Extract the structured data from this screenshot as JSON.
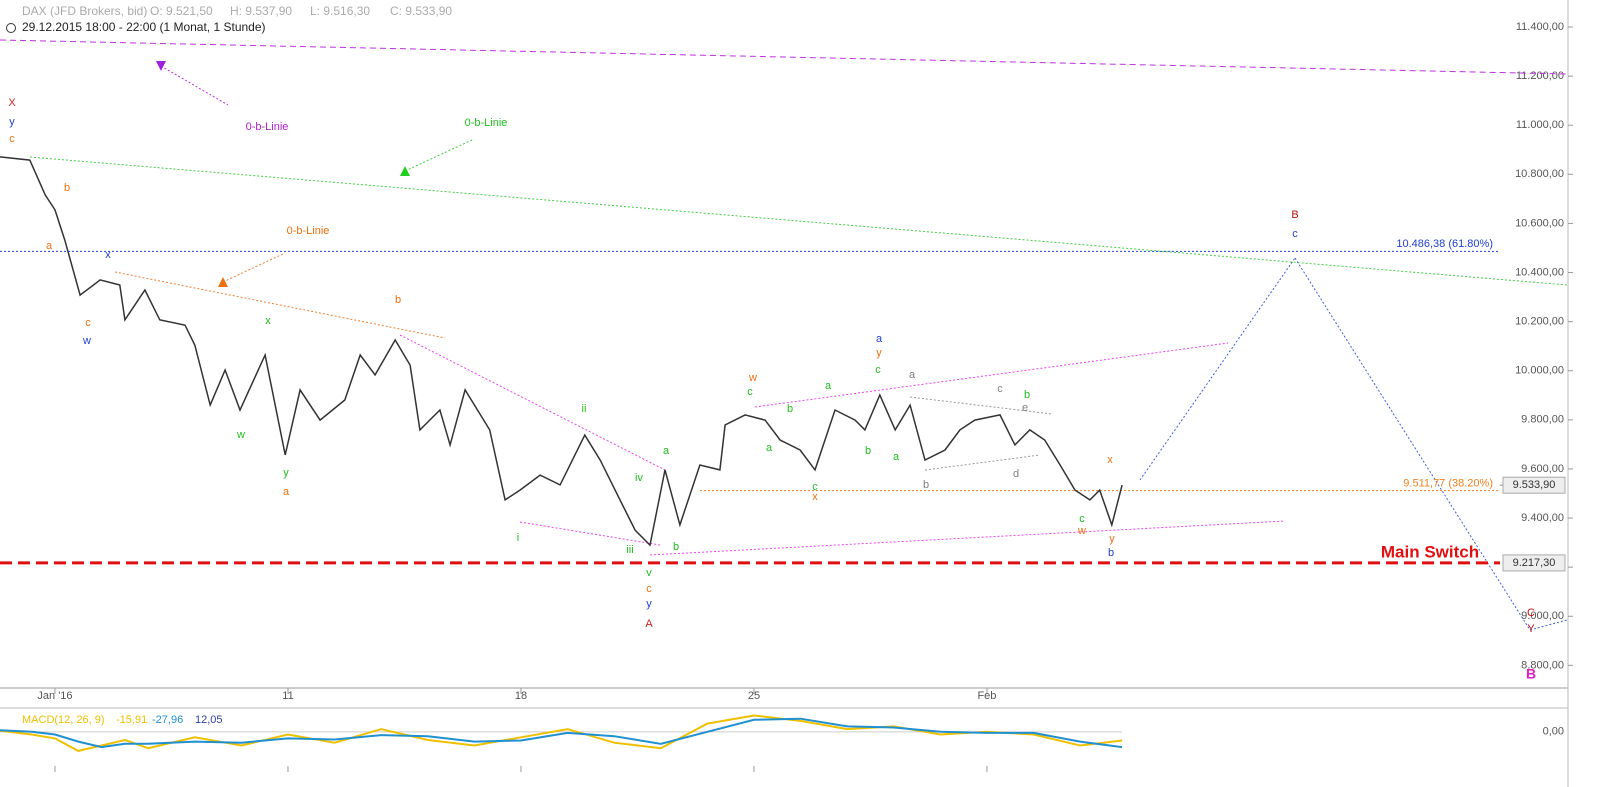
{
  "chart_data": {
    "type": "line",
    "title": "DAX (JFD Brokers, bid)",
    "ohlc_text": [
      "O: 9.521,50",
      "H: 9.537,90",
      "L: 9.516,30",
      "C: 9.533,90"
    ],
    "subtitle": "29.12.2015 18:00 - 22:00 (1 Monat, 1 Stunde)",
    "x": [
      -1.18,
      -0.54,
      -0.21,
      0,
      0.21,
      0.54,
      0.97,
      1.39,
      1.5,
      1.93,
      2.25,
      2.79,
      3.0,
      3.33,
      3.65,
      3.97,
      4.51,
      4.94,
      5.26,
      5.69,
      6.22,
      6.55,
      6.87,
      7.3,
      7.62,
      7.83,
      8.26,
      8.48,
      8.8,
      9.33,
      9.66,
      9.98,
      10.41,
      10.84,
      11.37,
      11.7,
      12.02,
      12.45,
      12.77,
      13.09,
      13.41,
      13.84,
      14.27,
      14.38,
      14.81,
      15.24,
      15.56,
      15.99,
      16.31,
      16.74,
      17.17,
      17.38,
      17.7,
      18.03,
      18.35,
      18.67,
      19.1,
      19.42,
      19.74,
      20.28,
      20.6,
      20.92,
      21.24,
      21.57,
      21.89,
      22.21,
      22.42,
      22.68,
      22.9
    ],
    "series": [
      {
        "color": "#333333",
        "values": [
          10871,
          10858,
          10716,
          10655,
          10532,
          10308,
          10370,
          10349,
          10207,
          10329,
          10207,
          10186,
          10105,
          9860,
          10003,
          9840,
          10064,
          9657,
          9922,
          9799,
          9881,
          10064,
          9983,
          10125,
          10023,
          9759,
          9840,
          9698,
          9922,
          9759,
          9474,
          9514,
          9575,
          9535,
          9738,
          9636,
          9514,
          9351,
          9290,
          9596,
          9372,
          9616,
          9596,
          9779,
          9820,
          9799,
          9718,
          9677,
          9596,
          9840,
          9799,
          9759,
          9901,
          9759,
          9860,
          9636,
          9677,
          9759,
          9799,
          9820,
          9698,
          9759,
          9718,
          9616,
          9514,
          9474,
          9514,
          9372,
          9534
        ]
      }
    ],
    "xlim": [
      -1.18,
      31.01
    ],
    "xticks": [
      {
        "value": 0,
        "label": "Jan '16"
      },
      {
        "value": 5,
        "label": "11"
      },
      {
        "value": 10,
        "label": "18"
      },
      {
        "value": 15,
        "label": "25"
      },
      {
        "value": 20,
        "label": "Feb"
      }
    ],
    "ylim": [
      8720,
      11510
    ],
    "yticks": [
      {
        "value": 8800,
        "label": "8.800,00"
      },
      {
        "value": 9000,
        "label": "9.000,00"
      },
      {
        "value": 9200,
        "label": "9.200,00"
      },
      {
        "value": 9400,
        "label": "9.400,00"
      },
      {
        "value": 9600,
        "label": "9.600,00"
      },
      {
        "value": 9800,
        "label": "9.800,00"
      },
      {
        "value": 10000,
        "label": "10.000,00"
      },
      {
        "value": 10200,
        "label": "10.200,00"
      },
      {
        "value": 10400,
        "label": "10.400,00"
      },
      {
        "value": 10600,
        "label": "10.600,00"
      },
      {
        "value": 10800,
        "label": "10.800,00"
      },
      {
        "value": 11000,
        "label": "11.000,00"
      },
      {
        "value": 11200,
        "label": "11.200,00"
      },
      {
        "value": 11400,
        "label": "11.400,00"
      }
    ],
    "levels": [
      {
        "value": 10486.38,
        "label": "10.486,38 (61.80%)",
        "color": "#2040d0"
      },
      {
        "value": 9511.77,
        "label": "9.511,77 (38.20%)",
        "color": "#f08020"
      },
      {
        "value": 9217.3,
        "label": "9.217,30",
        "color": "#e01010"
      }
    ],
    "last_price": {
      "value": 9533.9,
      "label": "9.533,90"
    },
    "annotations": [
      {
        "text": "X",
        "color": "#e02020"
      },
      {
        "text": "y",
        "color": "#2040d0"
      },
      {
        "text": "c",
        "color": "#f07010"
      },
      {
        "text": "b",
        "color": "#f07010"
      },
      {
        "text": "a",
        "color": "#f07010"
      },
      {
        "text": "x",
        "color": "#2040d0"
      },
      {
        "text": "c",
        "color": "#f07010"
      },
      {
        "text": "w",
        "color": "#2040d0"
      },
      {
        "text": "0-b-Linie",
        "color": "#b020d0"
      },
      {
        "text": "0-b-Linie",
        "color": "#20c020"
      },
      {
        "text": "0-b-Linie",
        "color": "#f07010"
      },
      {
        "text": "x",
        "color": "#20c020"
      },
      {
        "text": "w",
        "color": "#20c020"
      },
      {
        "text": "y",
        "color": "#20c020"
      },
      {
        "text": "a",
        "color": "#f07010"
      },
      {
        "text": "b",
        "color": "#f07010"
      },
      {
        "text": "ii",
        "color": "#20c020"
      },
      {
        "text": "i",
        "color": "#20c020"
      },
      {
        "text": "iv",
        "color": "#20c020"
      },
      {
        "text": "iii",
        "color": "#20c020"
      },
      {
        "text": "a",
        "color": "#20c020"
      },
      {
        "text": "b",
        "color": "#20c020"
      },
      {
        "text": "v",
        "color": "#20c020"
      },
      {
        "text": "c",
        "color": "#f07010"
      },
      {
        "text": "y",
        "color": "#2040d0"
      },
      {
        "text": "A",
        "color": "#e02020"
      },
      {
        "text": "w",
        "color": "#f07010"
      },
      {
        "text": "c",
        "color": "#20c020"
      },
      {
        "text": "b",
        "color": "#20c020"
      },
      {
        "text": "a",
        "color": "#20c020"
      },
      {
        "text": "c",
        "color": "#20c020"
      },
      {
        "text": "x",
        "color": "#f07010"
      },
      {
        "text": "a",
        "color": "#2040d0"
      },
      {
        "text": "y",
        "color": "#f07010"
      },
      {
        "text": "c",
        "color": "#20c020"
      },
      {
        "text": "a",
        "color": "#20c020"
      },
      {
        "text": "b",
        "color": "#20c020"
      },
      {
        "text": "a",
        "color": "#20c020"
      },
      {
        "text": "a",
        "color": "#808080"
      },
      {
        "text": "b",
        "color": "#808080"
      },
      {
        "text": "c",
        "color": "#808080"
      },
      {
        "text": "b",
        "color": "#20c020"
      },
      {
        "text": "e",
        "color": "#808080"
      },
      {
        "text": "d",
        "color": "#808080"
      },
      {
        "text": "x",
        "color": "#f07010"
      },
      {
        "text": "c",
        "color": "#20c020"
      },
      {
        "text": "w",
        "color": "#f07010"
      },
      {
        "text": "y",
        "color": "#f07010"
      },
      {
        "text": "b",
        "color": "#2040d0"
      },
      {
        "text": "B",
        "color": "#c01010"
      },
      {
        "text": "c",
        "color": "#2040d0"
      },
      {
        "text": "C",
        "color": "#c01010"
      },
      {
        "text": "Y",
        "color": "#c01010"
      },
      {
        "text": "B",
        "color": "#e020c0"
      },
      {
        "text": "Main Switch",
        "color": "#e01010"
      }
    ],
    "macd": {
      "label": "MACD(12, 26, 9)",
      "readings": [
        "-15,91",
        "-27,96",
        "12,05"
      ],
      "x": [
        -1.18,
        -0.5,
        0,
        0.5,
        1,
        1.5,
        2,
        3,
        4,
        5,
        6,
        7,
        8,
        9,
        10,
        11,
        12,
        13,
        14,
        15,
        16,
        17,
        18,
        19,
        20,
        21,
        22,
        22.9
      ],
      "ylim": [
        -70,
        40
      ],
      "yticks": [
        {
          "value": 0,
          "label": "0,00"
        }
      ],
      "series": [
        {
          "color": "#f0c000",
          "values": [
            2,
            -5,
            -12,
            -35,
            -25,
            -15,
            -30,
            -10,
            -25,
            -5,
            -20,
            5,
            -15,
            -25,
            -10,
            5,
            -20,
            -30,
            15,
            30,
            20,
            5,
            10,
            -5,
            0,
            -5,
            -25,
            -16
          ]
        },
        {
          "color": "#2090d0",
          "values": [
            3,
            0,
            -5,
            -18,
            -28,
            -22,
            -22,
            -18,
            -20,
            -12,
            -14,
            -6,
            -8,
            -18,
            -16,
            -2,
            -8,
            -22,
            0,
            22,
            24,
            10,
            8,
            0,
            -2,
            -2,
            -18,
            -28
          ]
        }
      ]
    }
  }
}
